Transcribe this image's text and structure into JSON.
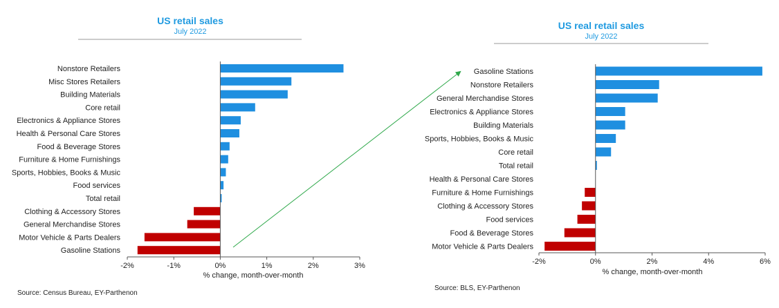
{
  "colors": {
    "title": "#1f9ae0",
    "positive": "#1f8fe0",
    "negative": "#c00000",
    "axis": "#555555",
    "rule": "#999999",
    "arrow": "#2ea84a"
  },
  "chart_data": [
    {
      "type": "bar",
      "orientation": "horizontal",
      "title": "US retail sales",
      "subtitle": "July 2022",
      "xlabel": "% change, month-over-month",
      "source": "Source: Census Bureau, EY-Parthenon",
      "xlim": [
        -2,
        3
      ],
      "xticks": [
        "-2%",
        "-1%",
        "0%",
        "1%",
        "2%",
        "3%"
      ],
      "categories": [
        "Nonstore Retailers",
        "Misc Stores Retailers",
        "Building Materials",
        "Core retail",
        "Electronics & Appliance Stores",
        "Health & Personal Care Stores",
        "Food & Beverage Stores",
        "Furniture & Home Furnishings",
        "Sports, Hobbies, Books & Music",
        "Food services",
        "Total retail",
        "Clothing & Accessory Stores",
        "General Merchandise Stores",
        "Motor Vehicle & Parts Dealers",
        "Gasoline Stations"
      ],
      "values": [
        2.65,
        1.53,
        1.45,
        0.75,
        0.44,
        0.41,
        0.2,
        0.17,
        0.12,
        0.07,
        0.03,
        -0.57,
        -0.71,
        -1.63,
        -1.78
      ]
    },
    {
      "type": "bar",
      "orientation": "horizontal",
      "title": "US real retail sales",
      "subtitle": "July 2022",
      "xlabel": "% change, month-over-month",
      "source": "Source: BLS, EY-Parthenon",
      "xlim": [
        -2,
        6
      ],
      "xticks": [
        "-2%",
        "0%",
        "2%",
        "4%",
        "6%"
      ],
      "categories": [
        "Gasoline Stations",
        "Nonstore Retailers",
        "General Merchandise Stores",
        "Electronics & Appliance Stores",
        "Building Materials",
        "Sports, Hobbies, Books & Music",
        "Core retail",
        "Total retail",
        "Health & Personal Care Stores",
        "Furniture & Home Furnishings",
        "Clothing & Accessory Stores",
        "Food services",
        "Food & Beverage Stores",
        "Motor Vehicle & Parts Dealers"
      ],
      "values": [
        5.9,
        2.25,
        2.2,
        1.05,
        1.05,
        0.72,
        0.55,
        0.05,
        0.0,
        -0.38,
        -0.48,
        -0.64,
        -1.1,
        -1.8
      ]
    }
  ]
}
